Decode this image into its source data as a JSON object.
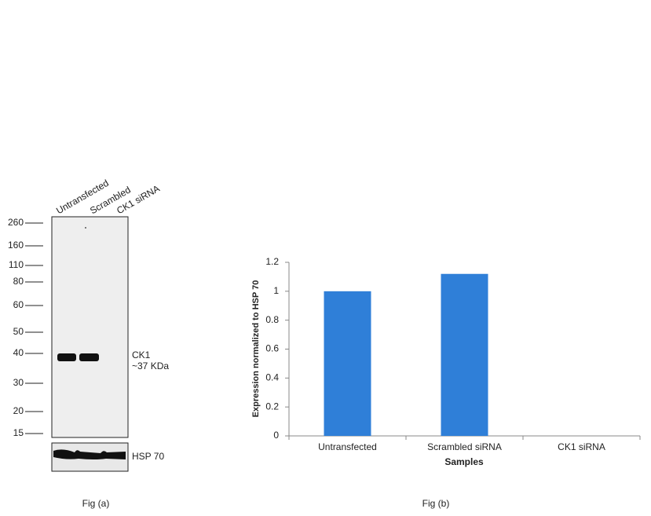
{
  "blot": {
    "lanes": [
      "Untransfected",
      "Scrambled",
      "CK1 siRNA"
    ],
    "markers": [
      260,
      160,
      110,
      80,
      60,
      50,
      40,
      30,
      20,
      15
    ],
    "target": "CK1",
    "target_size": "~37 KDa",
    "loading_control": "HSP 70",
    "caption": "Fig (a)"
  },
  "chart_data": {
    "type": "bar",
    "categories": [
      "Untransfected",
      "Scrambled siRNA",
      "CK1 siRNA"
    ],
    "values": [
      1,
      1.12,
      0
    ],
    "color": "#2f7fd8",
    "ylim": [
      0,
      1.2
    ],
    "yticks": [
      0,
      0.2,
      0.4,
      0.6,
      0.8,
      1,
      1.2
    ],
    "x_label": "Samples",
    "y_label": "Expression  normalized to HSP 70",
    "caption": "Fig (b)"
  }
}
